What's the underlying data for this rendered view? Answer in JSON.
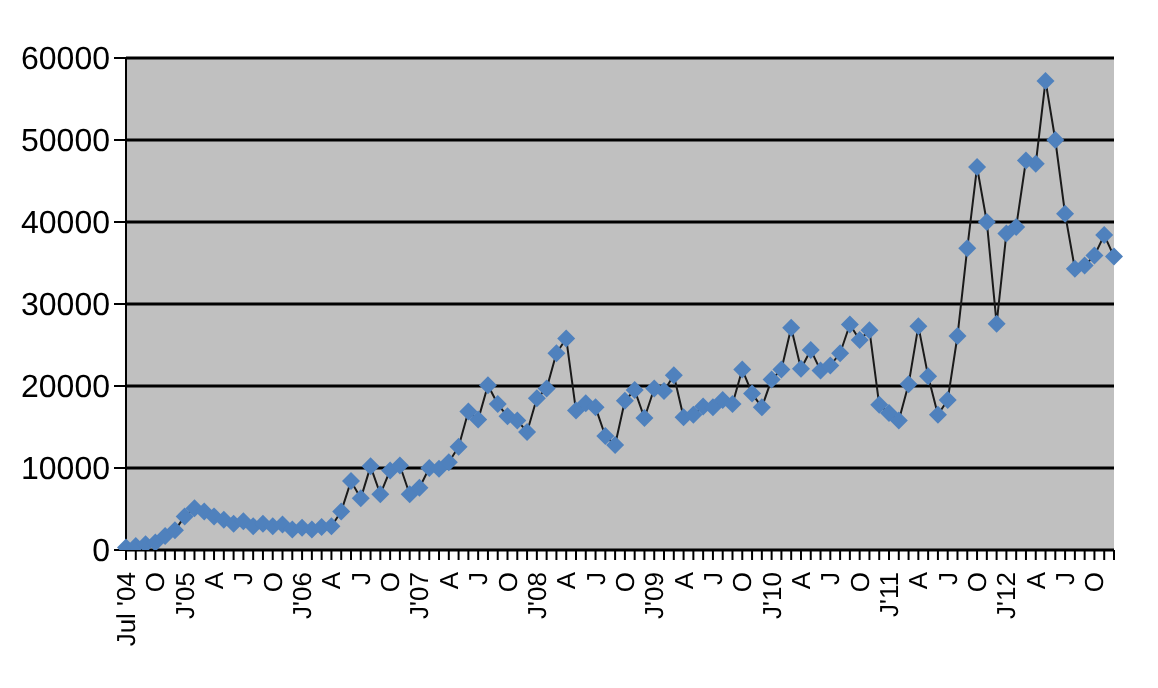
{
  "chart_data": {
    "type": "line",
    "categories": [
      "Jul '04",
      null,
      null,
      "O",
      null,
      null,
      "J'05",
      null,
      null,
      "A",
      null,
      null,
      "J",
      null,
      null,
      "O",
      null,
      null,
      "J'06",
      null,
      null,
      "A",
      null,
      null,
      "J",
      null,
      null,
      "O",
      null,
      null,
      "J'07",
      null,
      null,
      "A",
      null,
      null,
      "J",
      null,
      null,
      "O",
      null,
      null,
      "J'08",
      null,
      null,
      "A",
      null,
      null,
      "J",
      null,
      null,
      "O",
      null,
      null,
      "J'09",
      null,
      null,
      "A",
      null,
      null,
      "J",
      null,
      null,
      "O",
      null,
      null,
      "J'10",
      null,
      null,
      "A",
      null,
      null,
      "J",
      null,
      null,
      "O",
      null,
      null,
      "J'11",
      null,
      null,
      "A",
      null,
      null,
      "J",
      null,
      null,
      "O",
      null,
      null,
      "J'12",
      null,
      null,
      "A",
      null,
      null,
      "J",
      null,
      null,
      "O",
      null,
      null
    ],
    "series": [
      {
        "color": "#4f81bd",
        "values": [
          300,
          500,
          700,
          900,
          1700,
          2400,
          4100,
          5100,
          4700,
          4100,
          3700,
          3200,
          3500,
          2900,
          3200,
          2900,
          3100,
          2500,
          2700,
          2500,
          2800,
          2900,
          4700,
          8400,
          6300,
          10200,
          6800,
          9700,
          10300,
          6800,
          7600,
          10000,
          9900,
          10700,
          12600,
          16900,
          15900,
          20100,
          17800,
          16300,
          15800,
          14400,
          18500,
          19700,
          24000,
          25800,
          17000,
          17900,
          17400,
          13900,
          12800,
          18200,
          19500,
          16100,
          19700,
          19400,
          21300,
          16200,
          16500,
          17500,
          17400,
          18300,
          17800,
          22000,
          19100,
          17400,
          20800,
          22000,
          27100,
          22100,
          24400,
          21900,
          22500,
          24000,
          27500,
          25600,
          26800,
          17700,
          16700,
          15800,
          20200,
          27300,
          21200,
          16500,
          18300,
          26100,
          36800,
          46700,
          40000,
          27600,
          38600,
          39400,
          47500,
          47100,
          57200,
          50000,
          41000,
          34300,
          34700,
          35900,
          38400,
          35800
        ]
      }
    ],
    "ylim": [
      0,
      60000
    ],
    "yticks": [
      0,
      10000,
      20000,
      30000,
      40000,
      50000,
      60000
    ],
    "grid": "y",
    "marker": "diamond",
    "line_style": "solid"
  }
}
